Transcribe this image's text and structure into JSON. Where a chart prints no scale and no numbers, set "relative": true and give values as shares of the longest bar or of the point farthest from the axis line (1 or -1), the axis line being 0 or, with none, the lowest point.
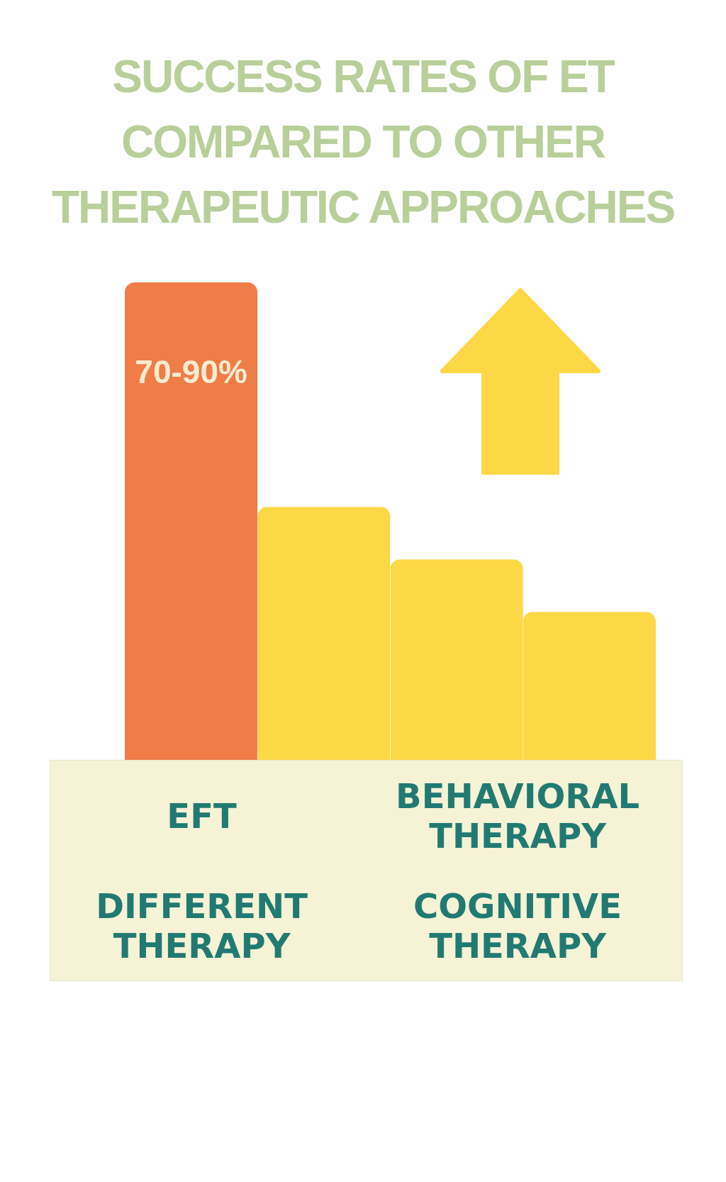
{
  "chart_data": {
    "type": "bar",
    "title": "SUCCESS RATES OF ET COMPARED TO OTHER THERAPEUTIC APPROACHES",
    "categories": [
      null,
      null,
      null,
      null
    ],
    "values": [
      1,
      0.53,
      0.42,
      0.31
    ],
    "colors": [
      "#f07c48",
      "#fcd846",
      "#fcd846",
      "#fcd846"
    ],
    "relative": true,
    "annotations": [
      "70-90%",
      "EFT",
      "BEHAVIORAL THERAPY",
      "DIFFERENT THERAPY",
      "COGNITIVE THERAPY"
    ]
  }
}
